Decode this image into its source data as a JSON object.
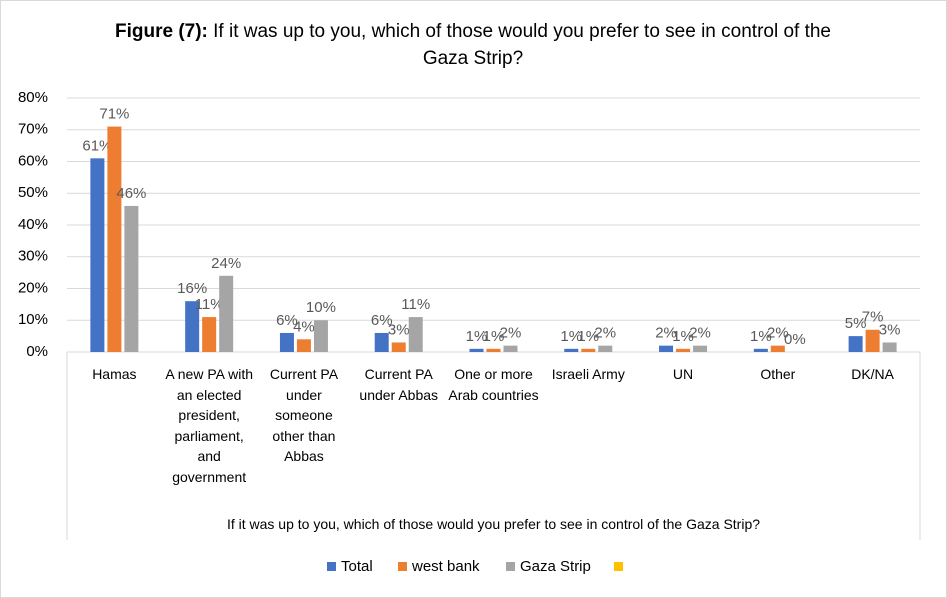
{
  "chart_data": {
    "type": "bar",
    "title_label": "Figure (7):",
    "title": "If it was up to you, which of those would you prefer to see in control of the Gaza Strip?",
    "x_axis_title": "If it was up to you, which of those would you prefer to see in control of the Gaza Strip?",
    "categories": [
      "Hamas",
      "A new PA with an elected president, parliament, and government",
      "Current PA under someone other than Abbas",
      "Current   PA under Abbas",
      "One or more Arab countries",
      "Israeli Army",
      "UN",
      "Other",
      "DK/NA"
    ],
    "series": [
      {
        "name": "Total",
        "color": "#4472c4",
        "values": [
          61,
          16,
          6,
          6,
          1,
          1,
          2,
          1,
          5
        ],
        "value_labels": [
          "61%",
          "16%",
          "6%",
          "6%",
          "1%",
          "1%",
          "2%",
          "1%",
          "5%"
        ]
      },
      {
        "name": "west bank",
        "color": "#ed7d31",
        "values": [
          71,
          11,
          4,
          3,
          1,
          1,
          1,
          2,
          7
        ],
        "value_labels": [
          "71%",
          "11%",
          "4%",
          "3%",
          "1%",
          "1%",
          "1%",
          "2%",
          "7%"
        ]
      },
      {
        "name": "Gaza Strip",
        "color": "#a5a5a5",
        "values": [
          46,
          24,
          10,
          11,
          2,
          2,
          2,
          0,
          3
        ],
        "value_labels": [
          "46%",
          "24%",
          "10%",
          "11%",
          "2%",
          "2%",
          "2%",
          "0%",
          "3%"
        ]
      }
    ],
    "ylim": [
      0,
      80
    ],
    "yticks": [
      {
        "value": 0,
        "label": "0%"
      },
      {
        "value": 10,
        "label": "10%"
      },
      {
        "value": 20,
        "label": "20%"
      },
      {
        "value": 30,
        "label": "30%"
      },
      {
        "value": 40,
        "label": "40%"
      },
      {
        "value": 50,
        "label": "50%"
      },
      {
        "value": 60,
        "label": "60%"
      },
      {
        "value": 70,
        "label": "70%"
      },
      {
        "value": 80,
        "label": "80%"
      }
    ],
    "grid": true
  }
}
